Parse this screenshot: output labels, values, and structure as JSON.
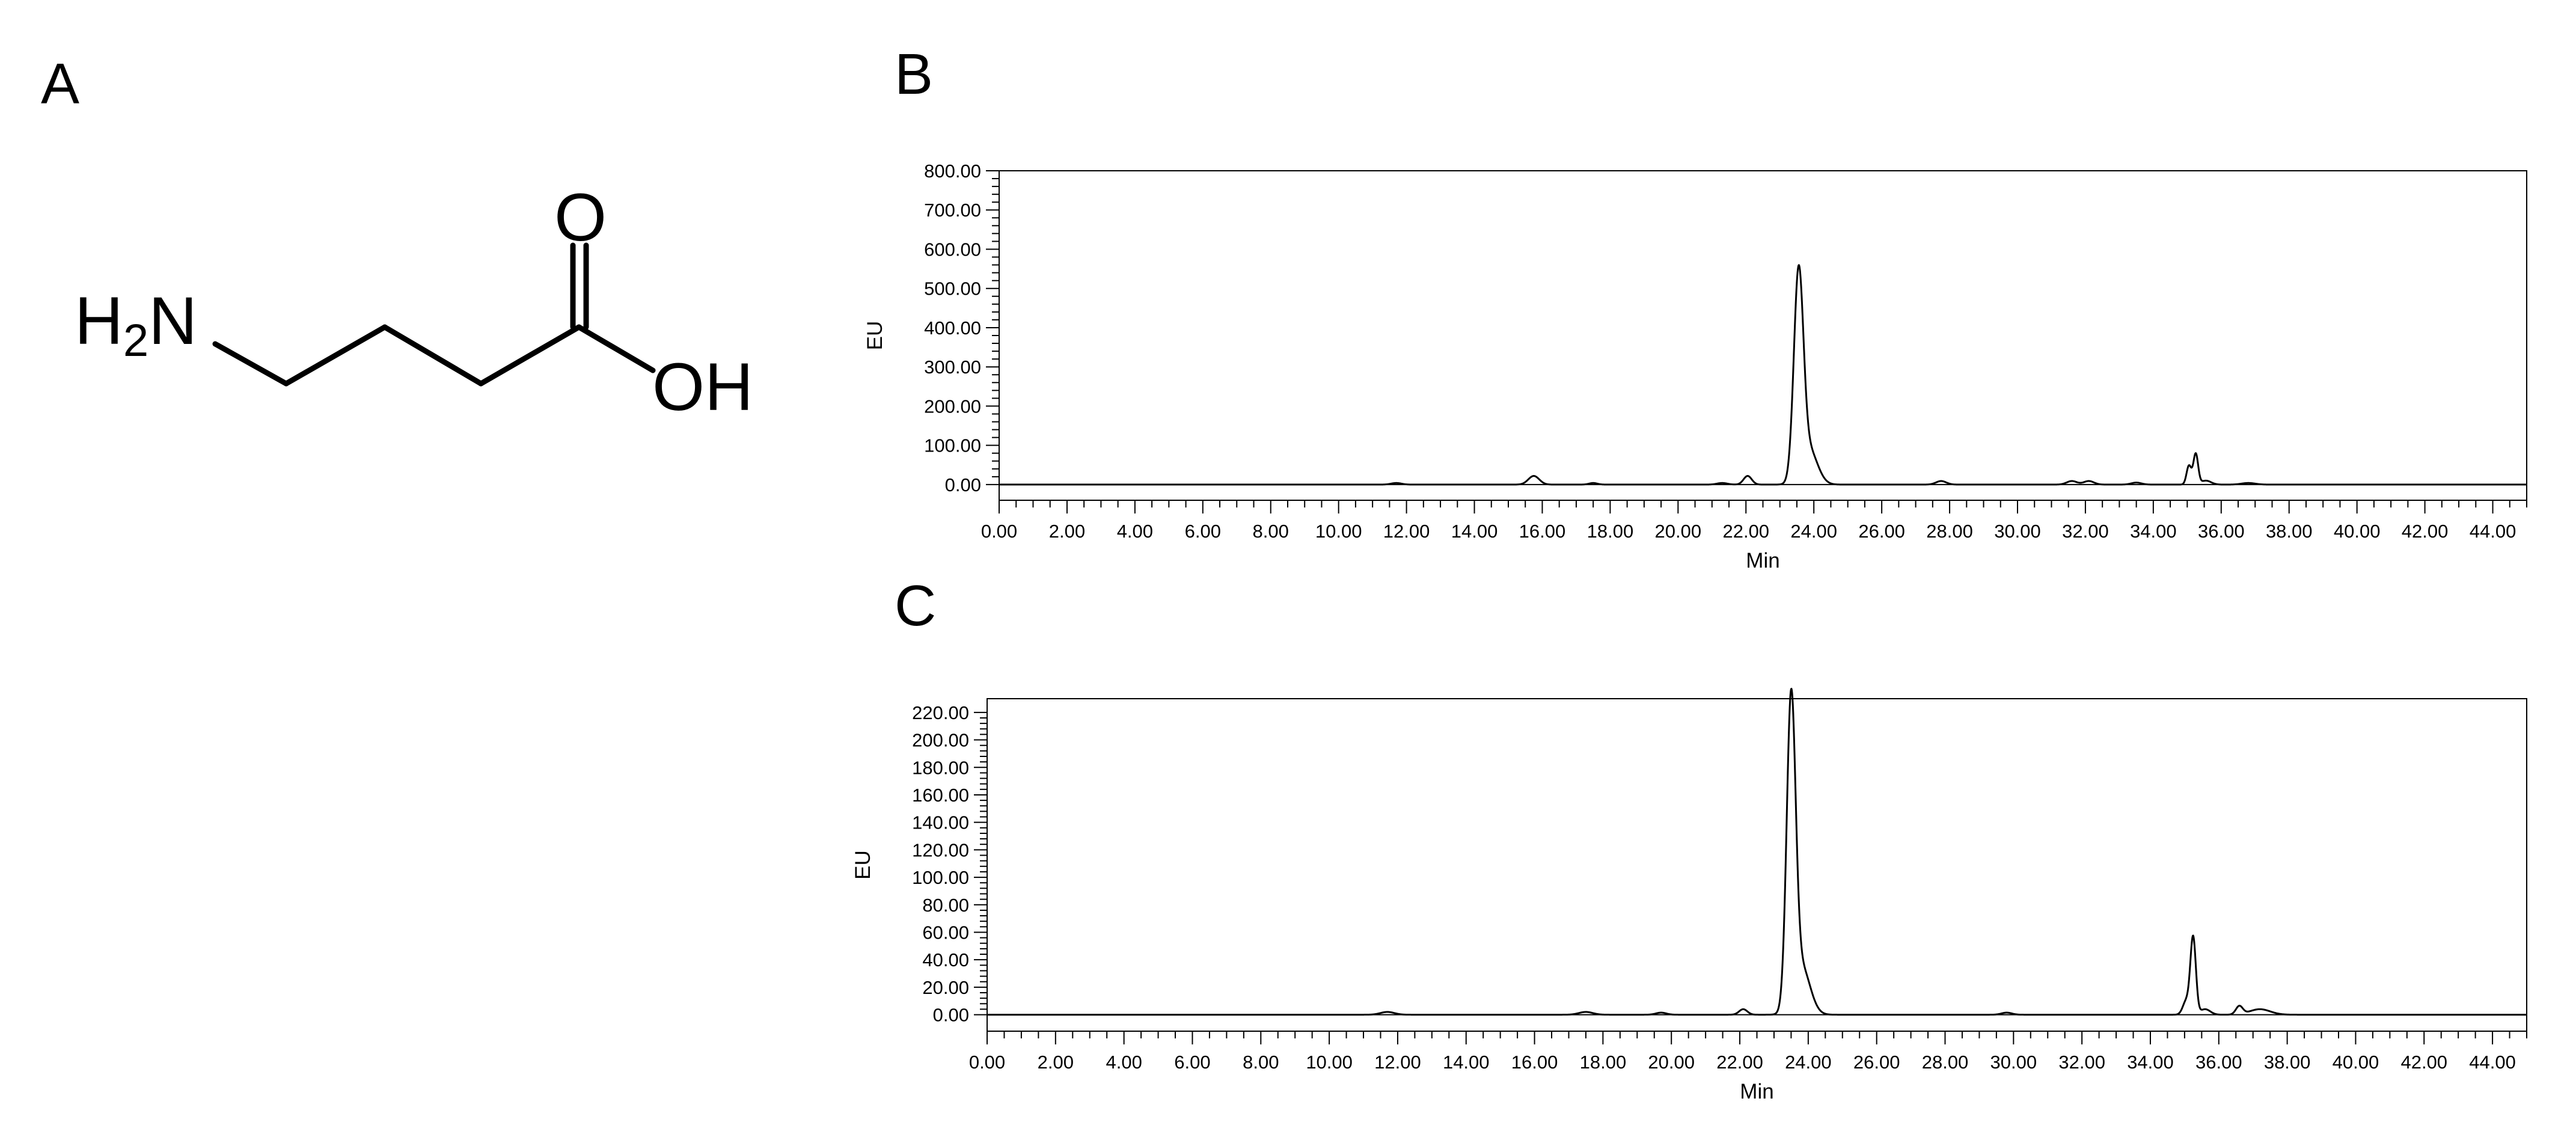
{
  "panels": {
    "a": "A",
    "b": "B",
    "c": "C"
  },
  "molecule": {
    "amine_h": "H",
    "amine_sub": "2",
    "amine_n": "N",
    "carbonyl_o": "O",
    "hydroxyl": "OH"
  },
  "chart_data": [
    {
      "type": "line",
      "panel": "B",
      "xlabel": "Min",
      "ylabel": "EU",
      "xlim": [
        0,
        45
      ],
      "ylim": [
        -40,
        800
      ],
      "x_ticks": [
        "0.00",
        "2.00",
        "4.00",
        "6.00",
        "8.00",
        "10.00",
        "12.00",
        "14.00",
        "16.00",
        "18.00",
        "20.00",
        "22.00",
        "24.00",
        "26.00",
        "28.00",
        "30.00",
        "32.00",
        "34.00",
        "36.00",
        "38.00",
        "40.00",
        "42.00",
        "44.00"
      ],
      "y_ticks": [
        "0.00",
        "100.00",
        "200.00",
        "300.00",
        "400.00",
        "500.00",
        "600.00",
        "700.00",
        "800.00"
      ],
      "series": [
        {
          "peaks": [
            {
              "x": 11.7,
              "y": 4,
              "w": 0.15
            },
            {
              "x": 15.75,
              "y": 22,
              "w": 0.16
            },
            {
              "x": 17.5,
              "y": 4,
              "w": 0.12
            },
            {
              "x": 21.3,
              "y": 4,
              "w": 0.15
            },
            {
              "x": 22.05,
              "y": 22,
              "w": 0.12
            },
            {
              "x": 23.55,
              "y": 515,
              "w": 0.14
            },
            {
              "x": 23.85,
              "y": 90,
              "w": 0.25
            },
            {
              "x": 27.75,
              "y": 9,
              "w": 0.15
            },
            {
              "x": 31.6,
              "y": 9,
              "w": 0.15
            },
            {
              "x": 32.1,
              "y": 9,
              "w": 0.15
            },
            {
              "x": 33.5,
              "y": 5,
              "w": 0.15
            },
            {
              "x": 35.05,
              "y": 48,
              "w": 0.07
            },
            {
              "x": 35.25,
              "y": 78,
              "w": 0.07
            },
            {
              "x": 35.55,
              "y": 10,
              "w": 0.15
            },
            {
              "x": 36.8,
              "y": 4,
              "w": 0.2
            }
          ]
        }
      ]
    },
    {
      "type": "line",
      "panel": "C",
      "xlabel": "Min",
      "ylabel": "EU",
      "xlim": [
        0,
        45
      ],
      "ylim": [
        -12,
        230
      ],
      "x_ticks": [
        "0.00",
        "2.00",
        "4.00",
        "6.00",
        "8.00",
        "10.00",
        "12.00",
        "14.00",
        "16.00",
        "18.00",
        "20.00",
        "22.00",
        "24.00",
        "26.00",
        "28.00",
        "30.00",
        "32.00",
        "34.00",
        "36.00",
        "38.00",
        "40.00",
        "42.00",
        "44.00"
      ],
      "y_ticks": [
        "0.00",
        "20.00",
        "40.00",
        "60.00",
        "80.00",
        "100.00",
        "120.00",
        "140.00",
        "160.00",
        "180.00",
        "200.00",
        "220.00"
      ],
      "series": [
        {
          "peaks": [
            {
              "x": 11.7,
              "y": 2,
              "w": 0.2
            },
            {
              "x": 17.5,
              "y": 2,
              "w": 0.2
            },
            {
              "x": 19.7,
              "y": 1.5,
              "w": 0.15
            },
            {
              "x": 22.1,
              "y": 4,
              "w": 0.12
            },
            {
              "x": 23.5,
              "y": 220,
              "w": 0.13
            },
            {
              "x": 23.8,
              "y": 35,
              "w": 0.25
            },
            {
              "x": 29.8,
              "y": 1.5,
              "w": 0.15
            },
            {
              "x": 35.05,
              "y": 10,
              "w": 0.1
            },
            {
              "x": 35.25,
              "y": 56,
              "w": 0.08
            },
            {
              "x": 35.6,
              "y": 4,
              "w": 0.15
            },
            {
              "x": 36.6,
              "y": 6,
              "w": 0.1
            },
            {
              "x": 37.2,
              "y": 4,
              "w": 0.3
            }
          ]
        }
      ]
    }
  ]
}
